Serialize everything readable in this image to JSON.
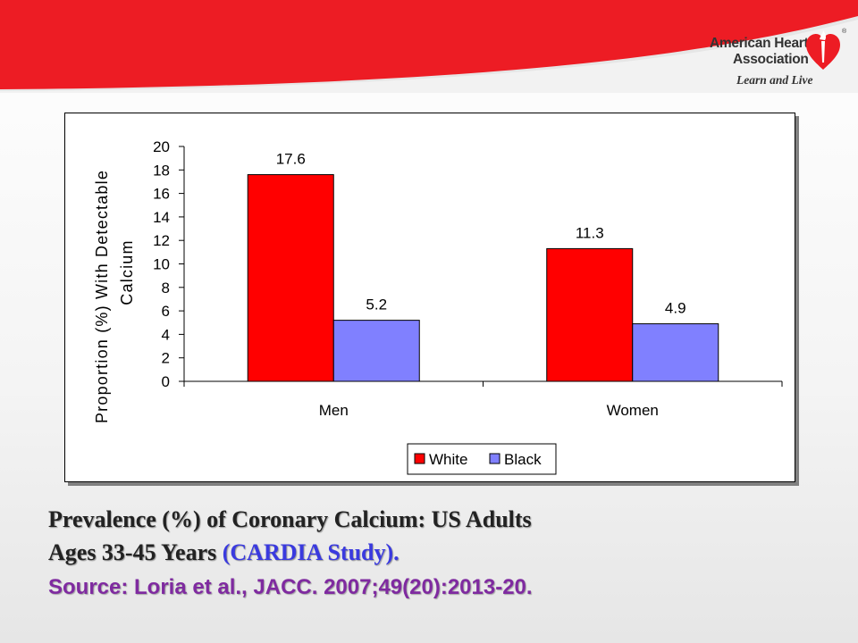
{
  "header": {
    "brand_line1": "American Heart",
    "brand_line2": "Association",
    "brand_tagline": "Learn and Live",
    "brand_mark": "heart-torch-icon",
    "registered_mark": "®",
    "band_color": "#ED1C24"
  },
  "chart_data": {
    "type": "bar",
    "categories": [
      "Men",
      "Women"
    ],
    "series": [
      {
        "name": "White",
        "values": [
          17.6,
          11.3
        ],
        "labels": [
          "17.6",
          "11.3"
        ],
        "color": "#FF0000"
      },
      {
        "name": "Black",
        "values": [
          5.2,
          4.9
        ],
        "labels": [
          "5.2",
          "4.9"
        ],
        "color": "#8080FF"
      }
    ],
    "ylabel_line1": "Proportion (%) With Detectable",
    "ylabel_line2": "Calcium",
    "ylim": [
      0,
      20
    ],
    "yticks": [
      "0",
      "2",
      "4",
      "6",
      "8",
      "10",
      "12",
      "14",
      "16",
      "18",
      "20"
    ],
    "grid": false,
    "legend_position": "bottom"
  },
  "caption": {
    "line1": "Prevalence (%) of Coronary Calcium: US Adults",
    "line2_main": "Ages 33-45 Years ",
    "line2_highlight": "(CARDIA Study).",
    "line3": "Source: Loria et al., JACC. 2007;49(20):2013-20."
  }
}
